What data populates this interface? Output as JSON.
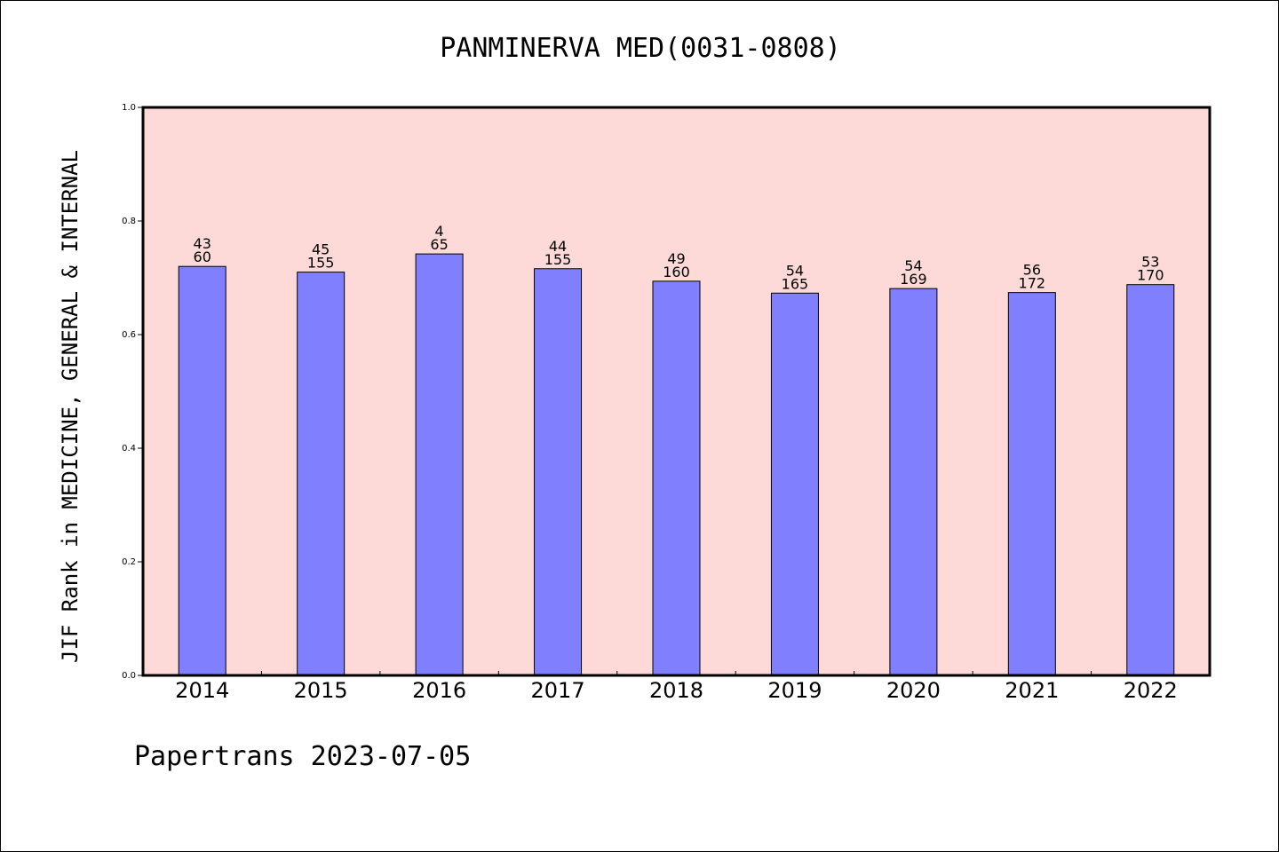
{
  "title": "PANMINERVA MED(0031-0808)",
  "footer": "Papertrans 2023-07-05",
  "colors": {
    "plot_background": "#fddad7",
    "bar_fill": "#8080ff",
    "axis": "#000000"
  },
  "chart_data": {
    "type": "bar",
    "title": "PANMINERVA MED(0031-0808)",
    "xlabel": "",
    "ylabel": "JIF Rank in MEDICINE, GENERAL & INTERNAL",
    "ylim": [
      0.0,
      1.0
    ],
    "yticks": [
      "0.0",
      "0.2",
      "0.4",
      "0.6",
      "0.8",
      "1.0"
    ],
    "grid": false,
    "categories": [
      "2014",
      "2015",
      "2016",
      "2017",
      "2018",
      "2019",
      "2020",
      "2021",
      "2022"
    ],
    "values": [
      0.72,
      0.71,
      0.742,
      0.716,
      0.694,
      0.673,
      0.681,
      0.674,
      0.688
    ],
    "rank": [
      "43",
      "45",
      "4",
      "44",
      "49",
      "54",
      "54",
      "56",
      "53"
    ],
    "total": [
      "60",
      "155",
      "65",
      "155",
      "160",
      "165",
      "169",
      "172",
      "170"
    ]
  }
}
